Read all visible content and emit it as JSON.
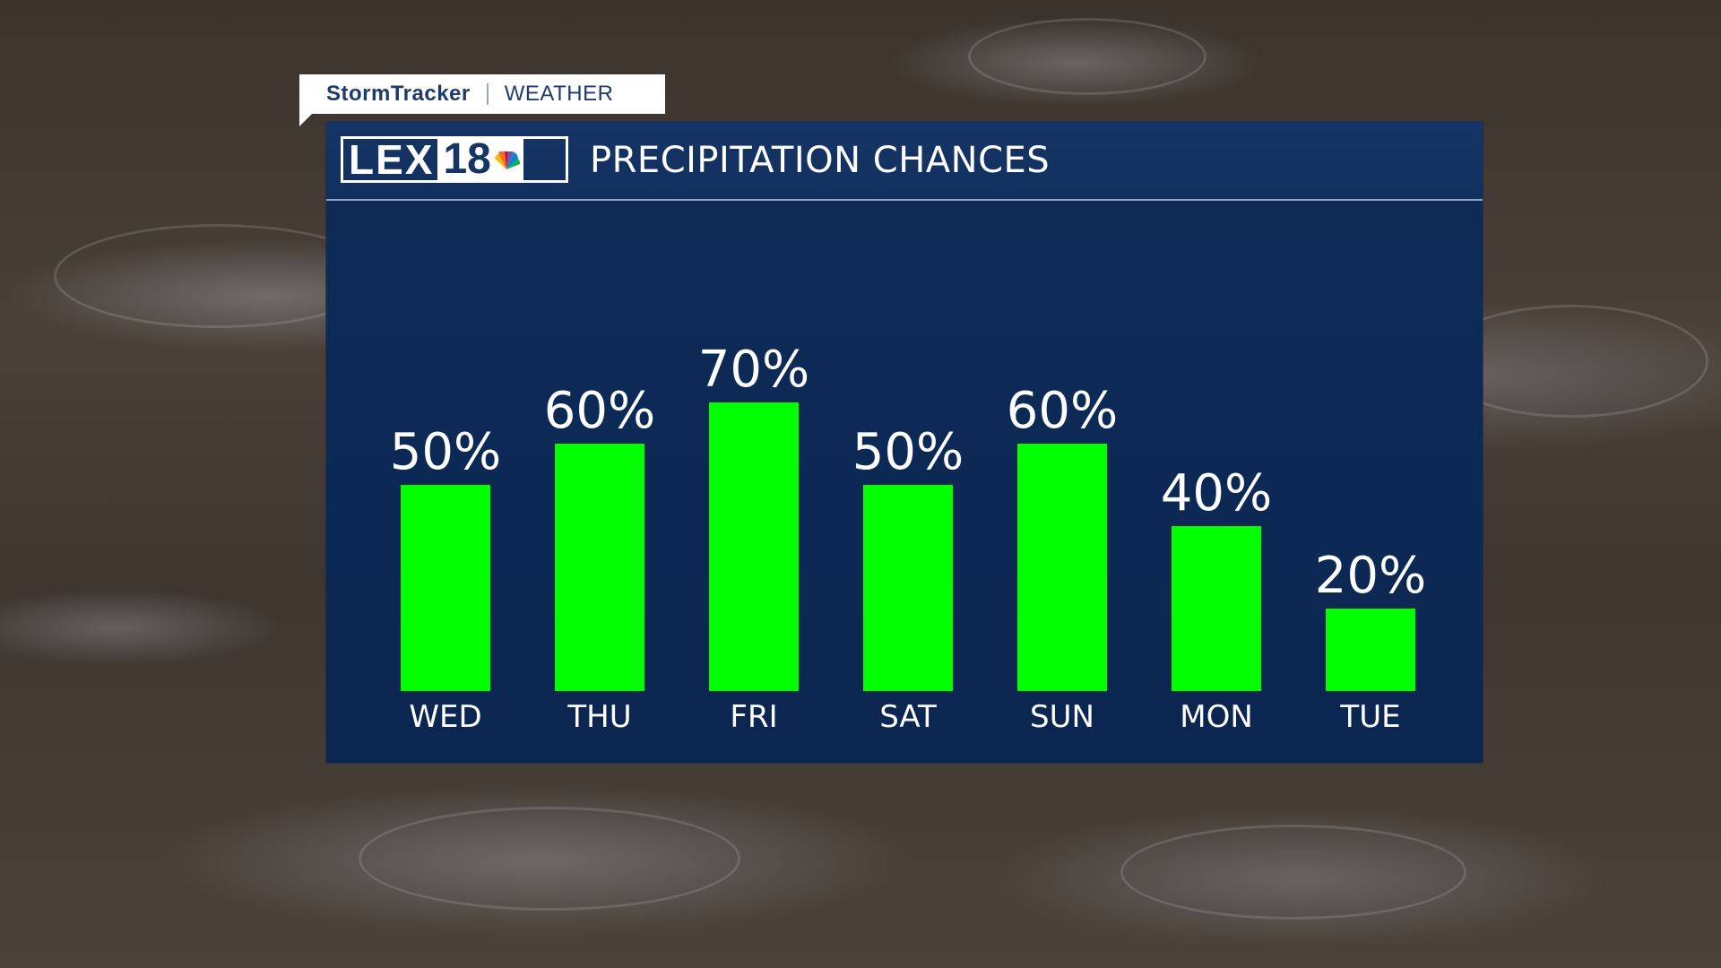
{
  "brand": {
    "storm_label": "StormTracker",
    "weather_label": "WEATHER"
  },
  "header": {
    "logo_lex": "LEX",
    "logo_num": "18",
    "title": "PRECIPITATION CHANCES"
  },
  "colors": {
    "bar": "#00ff00",
    "panel": "#0d2a57",
    "text": "#ffffff"
  },
  "chart_data": {
    "type": "bar",
    "title": "PRECIPITATION CHANCES",
    "categories": [
      "WED",
      "THU",
      "FRI",
      "SAT",
      "SUN",
      "MON",
      "TUE"
    ],
    "values": [
      50,
      60,
      70,
      50,
      60,
      40,
      20
    ],
    "value_labels": [
      "50%",
      "60%",
      "70%",
      "50%",
      "60%",
      "40%",
      "20%"
    ],
    "ylim": [
      0,
      100
    ],
    "grid": false,
    "legend": "none"
  }
}
